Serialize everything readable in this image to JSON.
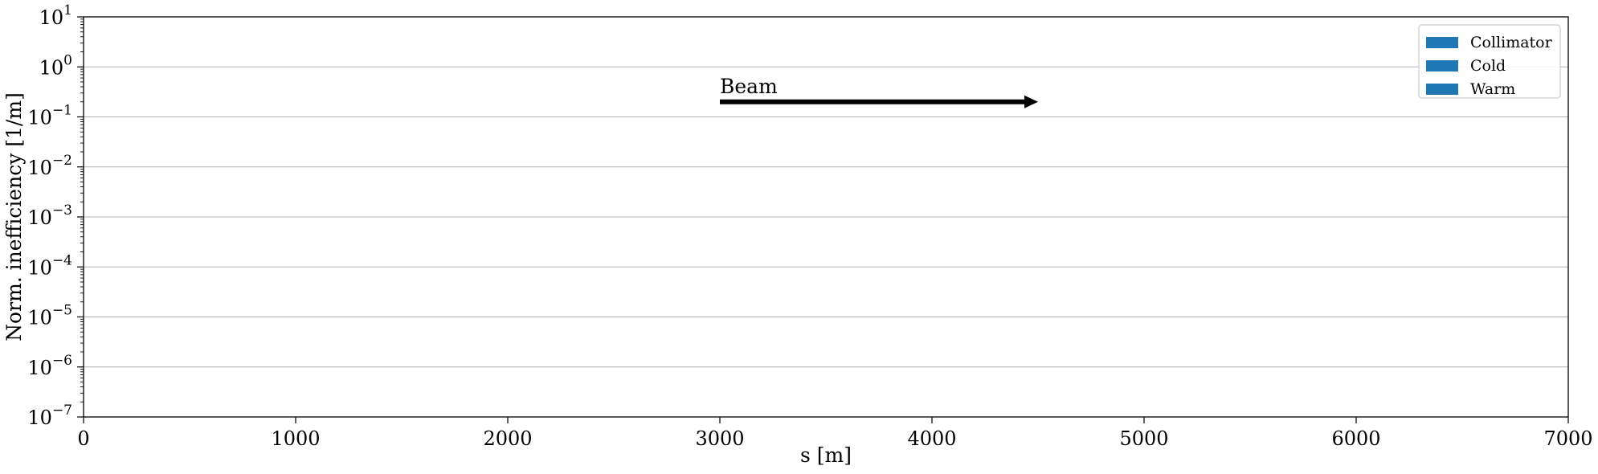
{
  "chart_data": {
    "type": "bar",
    "xlabel": "s [m]",
    "ylabel": "Norm. inefficiency [1/m]",
    "xlim": [
      0,
      7000
    ],
    "ylim": [
      1e-07,
      10
    ],
    "yscale": "log",
    "grid": "y-major",
    "x_ticks": [
      "0",
      "1000",
      "2000",
      "3000",
      "4000",
      "5000",
      "6000",
      "7000"
    ],
    "y_tick_exponents": [
      -7,
      -6,
      -5,
      -4,
      -3,
      -2,
      -1,
      0,
      1
    ],
    "y_tick_base": "10",
    "legend_position": "top-right",
    "series": [
      {
        "name": "Collimator",
        "color": "#1f77b4",
        "values": []
      },
      {
        "name": "Cold",
        "color": "#1f77b4",
        "values": []
      },
      {
        "name": "Warm",
        "color": "#1f77b4",
        "values": []
      }
    ],
    "annotations": [
      {
        "text": "Beam",
        "x_start": 3000,
        "x_end": 4500,
        "y": 0.2,
        "arrow": "right"
      }
    ]
  }
}
